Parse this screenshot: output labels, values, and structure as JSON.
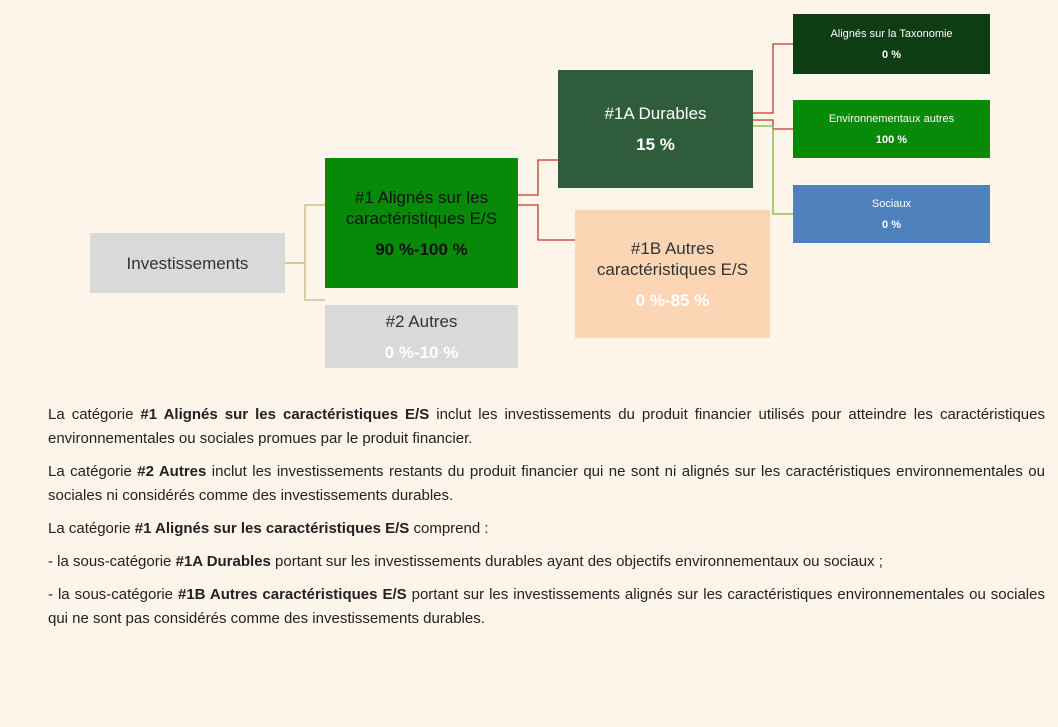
{
  "nodes": [
    {
      "label": "Investissements"
    },
    {
      "label": "#1 Alignés sur les caractéristiques E/S",
      "value": "90 %-100 %"
    },
    {
      "label": "#2 Autres",
      "value": "0 %-10 %"
    },
    {
      "label": "#1A Durables",
      "value": "15 %"
    },
    {
      "label": "#1B Autres caractéristiques E/S",
      "value": "0 %-85 %"
    },
    {
      "label": "Alignés sur la Taxonomie",
      "value": "0 %"
    },
    {
      "label": "Environnementaux autres",
      "value": "100 %"
    },
    {
      "label": "Sociaux",
      "value": "0 %"
    }
  ],
  "paragraphs": [
    {
      "before": "La catégorie ",
      "bold": "#1 Alignés sur les caractéristiques E/S",
      "after": " inclut les investissements du produit financier utilisés pour atteindre les caractéristiques environnementales ou sociales promues par le produit financier."
    },
    {
      "before": "La catégorie ",
      "bold": "#2 Autres",
      "after": " inclut les investissements restants du produit financier qui ne sont ni alignés sur les caractéristiques environnementales ou sociales ni considérés comme des investissements durables."
    },
    {
      "before": "La catégorie ",
      "bold": "#1 Alignés sur les caractéristiques E/S",
      "after": " comprend :"
    },
    {
      "before": "- la sous-catégorie ",
      "bold": "#1A Durables",
      "after": " portant sur les investissements durables ayant des objectifs environnementaux ou sociaux ;"
    },
    {
      "before": "- la sous-catégorie ",
      "bold": "#1B Autres caractéristiques E/S",
      "after": " portant sur les investissements alignés sur les caractéristiques environnementales ou sociales qui ne sont pas considérés comme des investissements durables."
    }
  ]
}
